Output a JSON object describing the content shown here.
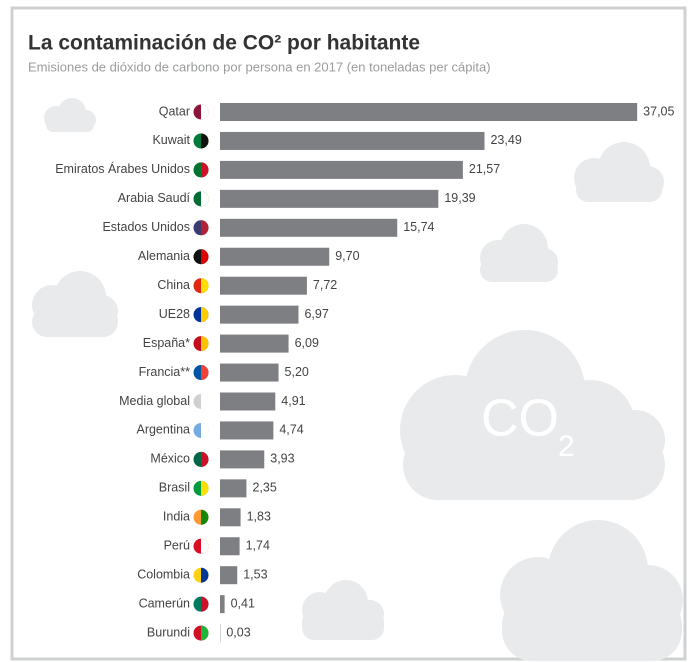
{
  "chart_data": {
    "type": "bar",
    "orientation": "horizontal",
    "title": "La contaminación de CO² por habitante",
    "subtitle": "Emisiones de dióxido de carbono por persona en 2017 (en toneladas per cápita)",
    "cloud_text": "CO",
    "cloud_subscript": "2",
    "categories": [
      "Qatar",
      "Kuwait",
      "Emiratos Árabes Unidos",
      "Arabia Saudí",
      "Estados Unidos",
      "Alemania",
      "China",
      "UE28",
      "España*",
      "Francia**",
      "Media global",
      "Argentina",
      "México",
      "Brasil",
      "India",
      "Perú",
      "Colombia",
      "Camerún",
      "Burundi"
    ],
    "values": [
      37.05,
      23.49,
      21.57,
      19.39,
      15.74,
      9.7,
      7.72,
      6.97,
      6.09,
      5.2,
      4.91,
      4.74,
      3.93,
      2.35,
      1.83,
      1.74,
      1.53,
      0.41,
      0.03
    ],
    "value_labels": [
      "37,05",
      "23,49",
      "21,57",
      "19,39",
      "15,74",
      "9,70",
      "7,72",
      "6,97",
      "6,09",
      "5,20",
      "4,91",
      "4,74",
      "3,93",
      "2,35",
      "1,83",
      "1,74",
      "1,53",
      "0,41",
      "0,03"
    ],
    "color": "#7d7f82"
  }
}
